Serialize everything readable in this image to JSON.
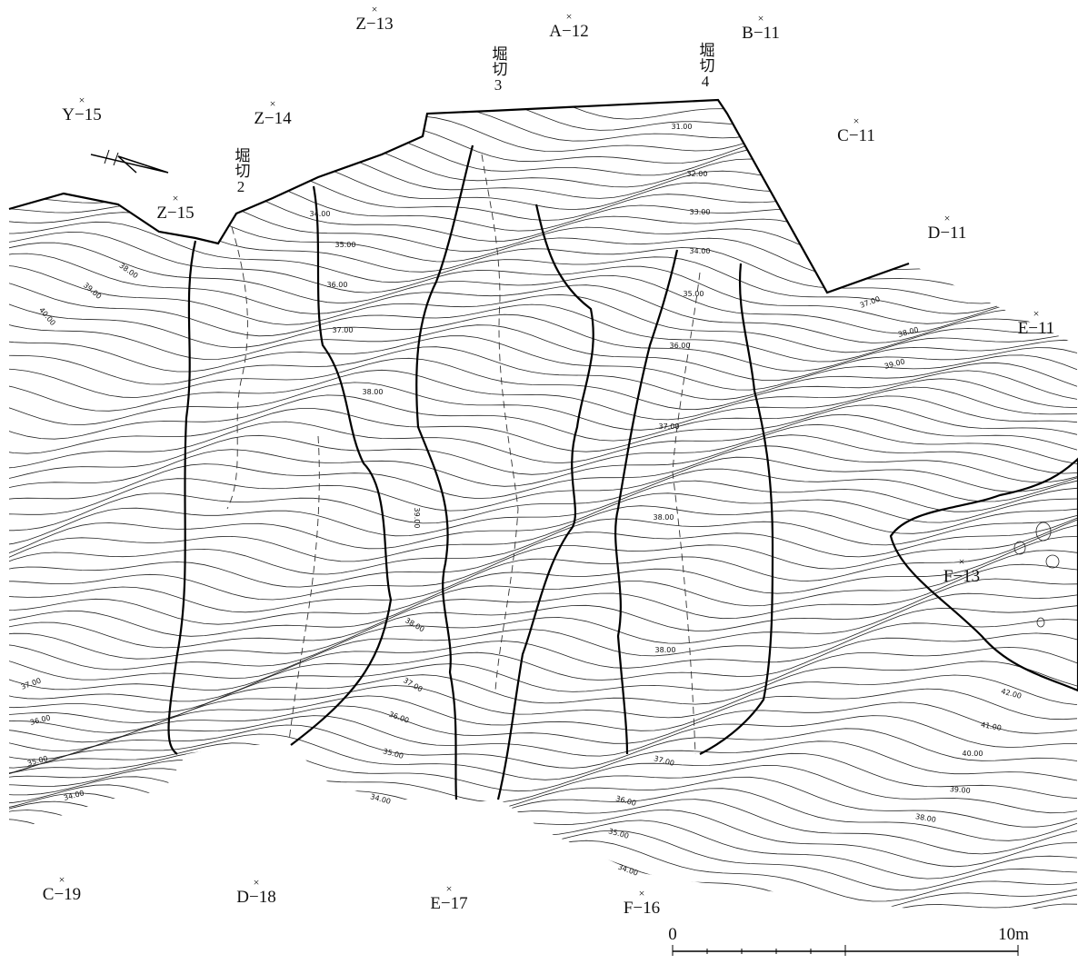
{
  "grid_points": [
    {
      "label": "Z−13"
    },
    {
      "label": "A−12"
    },
    {
      "label": "B−11"
    },
    {
      "label": "Y−15"
    },
    {
      "label": "Z−14"
    },
    {
      "label": "C−11"
    },
    {
      "label": "Z−15"
    },
    {
      "label": "D−11"
    },
    {
      "label": "E−11"
    },
    {
      "label": "F−13"
    },
    {
      "label": "C−19"
    },
    {
      "label": "D−18"
    },
    {
      "label": "E−17"
    },
    {
      "label": "F−16"
    }
  ],
  "moats": [
    {
      "label": "堀切2"
    },
    {
      "label": "堀切3"
    },
    {
      "label": "堀切4"
    }
  ],
  "contour_labels": [
    "31.00",
    "32.00",
    "33.00",
    "34.00",
    "35.00",
    "36.00",
    "37.00",
    "38.00",
    "39.00",
    "38.00",
    "37.00",
    "36.00",
    "35.00",
    "34.00",
    "34.00",
    "35.00",
    "36.00",
    "37.00",
    "38.00",
    "38.00",
    "37.00",
    "36.00",
    "35.00",
    "34.00",
    "37.00",
    "38.00",
    "39.00",
    "42.00",
    "41.00",
    "40.00",
    "39.00",
    "38.00",
    "38.00",
    "39.00",
    "40.00",
    "37.00",
    "36.00",
    "35.00",
    "34.00"
  ],
  "scale": {
    "start": "0",
    "end": "10m"
  }
}
